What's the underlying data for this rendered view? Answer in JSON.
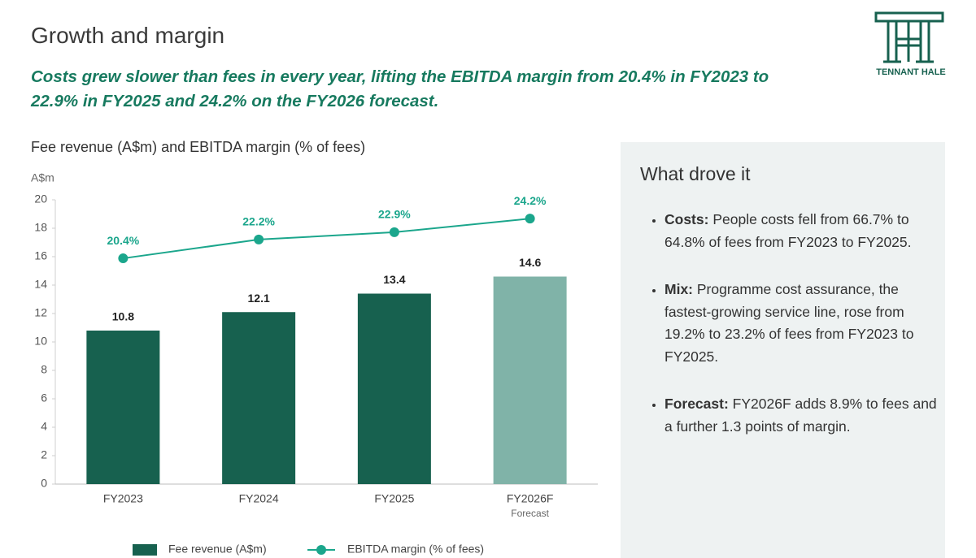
{
  "header": {
    "title": "Growth and margin",
    "subtitle": "Costs grew slower than fees in every year, lifting the EBITDA margin from 20.4% in FY2023 to 22.9% in FY2025 and 24.2% on the FY2026 forecast.",
    "logo_text": "TENNANT HALE"
  },
  "chart_data": {
    "type": "bar",
    "title": "Fee revenue (A$m) and EBITDA margin (% of fees)",
    "y_label": "A$m",
    "categories": [
      "FY2023",
      "FY2024",
      "FY2025",
      "FY2026F"
    ],
    "category_notes": [
      null,
      null,
      null,
      "Forecast"
    ],
    "series": [
      {
        "name": "Fee revenue (A$m)",
        "type": "bar",
        "color": "#17614f",
        "colors": [
          "#17614f",
          "#17614f",
          "#17614f",
          "#80b3a8"
        ],
        "values": [
          10.8,
          12.1,
          13.4,
          14.6
        ]
      },
      {
        "name": "EBITDA margin (% of fees)",
        "type": "line",
        "axis": "y2",
        "color": "#1ba68c",
        "values": [
          20.4,
          22.2,
          22.9,
          24.2
        ],
        "value_labels": [
          "20.4%",
          "22.2%",
          "22.9%",
          "24.2%"
        ]
      }
    ],
    "ylim": [
      0,
      20
    ],
    "yticks": [
      0,
      2,
      4,
      6,
      8,
      10,
      12,
      14,
      16,
      18,
      20
    ],
    "y2lim": [
      -1.2,
      26
    ],
    "grid": false
  },
  "panel": {
    "title": "What drove it",
    "bullets": [
      {
        "lead": "Costs:",
        "text": "People costs fell from 66.7% to 64.8% of fees from FY2023 to FY2025."
      },
      {
        "lead": "Mix:",
        "text": "Programme cost assurance, the fastest-growing service line, rose from 19.2% to 23.2% of fees from FY2023 to FY2025."
      },
      {
        "lead": "Forecast:",
        "text": "FY2026F adds 8.9% to fees and a further 1.3 points of margin."
      }
    ]
  }
}
